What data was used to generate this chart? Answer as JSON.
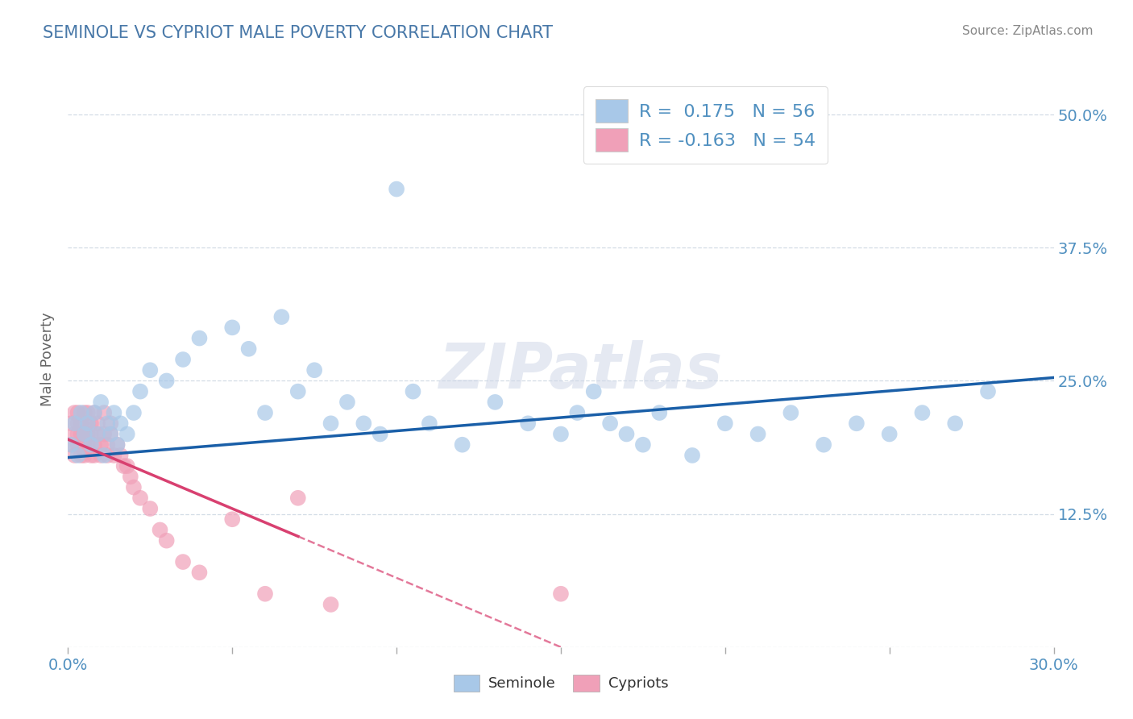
{
  "title": "SEMINOLE VS CYPRIOT MALE POVERTY CORRELATION CHART",
  "source_text": "Source: ZipAtlas.com",
  "ylabel": "Male Poverty",
  "xlim": [
    0.0,
    0.3
  ],
  "ylim": [
    0.0,
    0.54
  ],
  "seminole_color": "#a8c8e8",
  "cypriot_color": "#f0a0b8",
  "seminole_line_color": "#1a5fa8",
  "cypriot_line_color": "#d84070",
  "R_seminole": 0.175,
  "N_seminole": 56,
  "R_cypriot": -0.163,
  "N_cypriot": 54,
  "background_color": "#ffffff",
  "grid_color": "#c8d4e0",
  "title_color": "#4878a8",
  "axis_tick_color": "#5090c0",
  "watermark": "ZIPatlas",
  "seminole_x": [
    0.001,
    0.002,
    0.003,
    0.004,
    0.005,
    0.006,
    0.007,
    0.008,
    0.009,
    0.01,
    0.011,
    0.012,
    0.013,
    0.014,
    0.015,
    0.016,
    0.018,
    0.02,
    0.022,
    0.025,
    0.03,
    0.035,
    0.04,
    0.05,
    0.055,
    0.06,
    0.065,
    0.07,
    0.075,
    0.08,
    0.085,
    0.09,
    0.095,
    0.1,
    0.105,
    0.11,
    0.12,
    0.13,
    0.14,
    0.15,
    0.155,
    0.16,
    0.165,
    0.17,
    0.175,
    0.18,
    0.19,
    0.2,
    0.21,
    0.22,
    0.23,
    0.24,
    0.25,
    0.26,
    0.27,
    0.28
  ],
  "seminole_y": [
    0.19,
    0.21,
    0.18,
    0.22,
    0.2,
    0.21,
    0.19,
    0.22,
    0.2,
    0.23,
    0.18,
    0.21,
    0.2,
    0.22,
    0.19,
    0.21,
    0.2,
    0.22,
    0.24,
    0.26,
    0.25,
    0.27,
    0.29,
    0.3,
    0.28,
    0.22,
    0.31,
    0.24,
    0.26,
    0.21,
    0.23,
    0.21,
    0.2,
    0.43,
    0.24,
    0.21,
    0.19,
    0.23,
    0.21,
    0.2,
    0.22,
    0.24,
    0.21,
    0.2,
    0.19,
    0.22,
    0.18,
    0.21,
    0.2,
    0.22,
    0.19,
    0.21,
    0.2,
    0.22,
    0.21,
    0.24
  ],
  "cypriot_x": [
    0.001,
    0.001,
    0.002,
    0.002,
    0.002,
    0.003,
    0.003,
    0.003,
    0.003,
    0.004,
    0.004,
    0.004,
    0.005,
    0.005,
    0.005,
    0.005,
    0.006,
    0.006,
    0.006,
    0.006,
    0.007,
    0.007,
    0.007,
    0.008,
    0.008,
    0.008,
    0.009,
    0.009,
    0.01,
    0.01,
    0.011,
    0.011,
    0.012,
    0.012,
    0.013,
    0.013,
    0.014,
    0.015,
    0.016,
    0.017,
    0.018,
    0.019,
    0.02,
    0.022,
    0.025,
    0.028,
    0.03,
    0.035,
    0.04,
    0.05,
    0.06,
    0.07,
    0.08,
    0.15
  ],
  "cypriot_y": [
    0.21,
    0.19,
    0.22,
    0.2,
    0.18,
    0.21,
    0.19,
    0.2,
    0.22,
    0.18,
    0.2,
    0.21,
    0.19,
    0.22,
    0.18,
    0.2,
    0.21,
    0.19,
    0.2,
    0.22,
    0.18,
    0.2,
    0.21,
    0.19,
    0.22,
    0.18,
    0.2,
    0.21,
    0.18,
    0.19,
    0.2,
    0.22,
    0.18,
    0.19,
    0.2,
    0.21,
    0.18,
    0.19,
    0.18,
    0.17,
    0.17,
    0.16,
    0.15,
    0.14,
    0.13,
    0.11,
    0.1,
    0.08,
    0.07,
    0.12,
    0.05,
    0.14,
    0.04,
    0.05
  ],
  "cyp_line_solid_end": 0.07,
  "cyp_line_intercept": 0.195,
  "cyp_line_slope": -1.3,
  "sem_line_intercept": 0.178,
  "sem_line_slope": 0.25
}
